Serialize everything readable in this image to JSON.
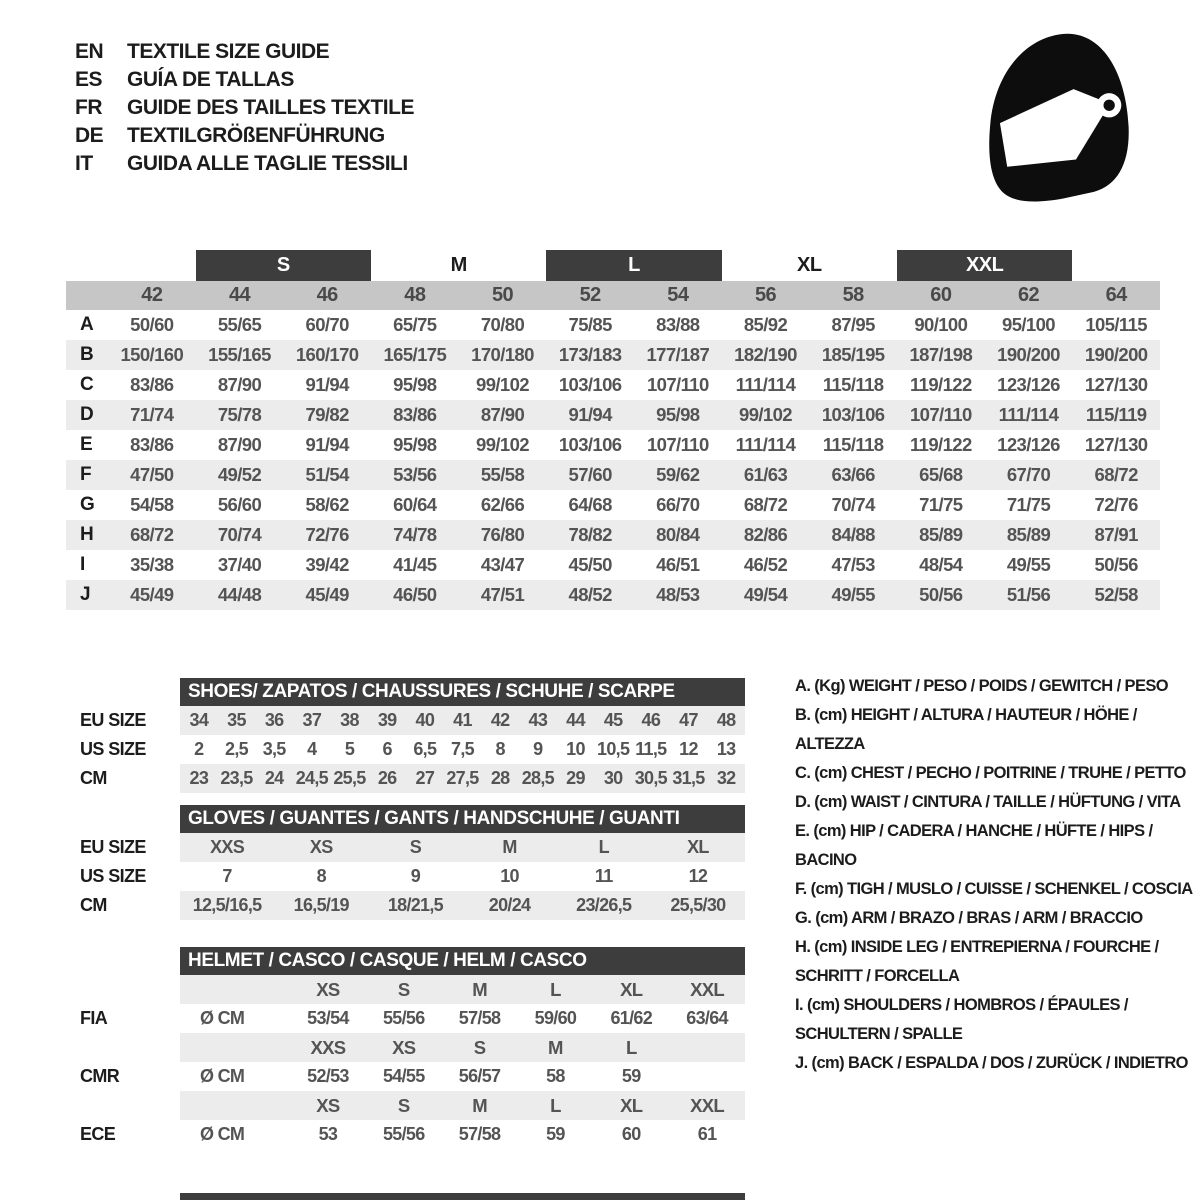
{
  "header": {
    "languages": [
      {
        "code": "EN",
        "title": "TEXTILE SIZE GUIDE"
      },
      {
        "code": "ES",
        "title": "GUÍA DE TALLAS"
      },
      {
        "code": "FR",
        "title": "GUIDE DES TAILLES TEXTILE"
      },
      {
        "code": "DE",
        "title": "TEXTILGRÖßENFÜHRUNG"
      },
      {
        "code": "IT",
        "title": "GUIDA ALLE TAGLIE TESSILI"
      }
    ],
    "icon": "racing-helmet"
  },
  "textile_table": {
    "size_bands": [
      {
        "label": "S",
        "boxed": true
      },
      {
        "label": "M",
        "boxed": false
      },
      {
        "label": "L",
        "boxed": true
      },
      {
        "label": "XL",
        "boxed": false
      },
      {
        "label": "XXL",
        "boxed": true
      }
    ],
    "numeric_sizes": [
      "42",
      "44",
      "46",
      "48",
      "50",
      "52",
      "54",
      "56",
      "58",
      "60",
      "62",
      "64"
    ],
    "rows": [
      {
        "label": "A",
        "values": [
          "50/60",
          "55/65",
          "60/70",
          "65/75",
          "70/80",
          "75/85",
          "83/88",
          "85/92",
          "87/95",
          "90/100",
          "95/100",
          "105/115"
        ]
      },
      {
        "label": "B",
        "values": [
          "150/160",
          "155/165",
          "160/170",
          "165/175",
          "170/180",
          "173/183",
          "177/187",
          "182/190",
          "185/195",
          "187/198",
          "190/200",
          "190/200"
        ]
      },
      {
        "label": "C",
        "values": [
          "83/86",
          "87/90",
          "91/94",
          "95/98",
          "99/102",
          "103/106",
          "107/110",
          "111/114",
          "115/118",
          "119/122",
          "123/126",
          "127/130"
        ]
      },
      {
        "label": "D",
        "values": [
          "71/74",
          "75/78",
          "79/82",
          "83/86",
          "87/90",
          "91/94",
          "95/98",
          "99/102",
          "103/106",
          "107/110",
          "111/114",
          "115/119"
        ]
      },
      {
        "label": "E",
        "values": [
          "83/86",
          "87/90",
          "91/94",
          "95/98",
          "99/102",
          "103/106",
          "107/110",
          "111/114",
          "115/118",
          "119/122",
          "123/126",
          "127/130"
        ]
      },
      {
        "label": "F",
        "values": [
          "47/50",
          "49/52",
          "51/54",
          "53/56",
          "55/58",
          "57/60",
          "59/62",
          "61/63",
          "63/66",
          "65/68",
          "67/70",
          "68/72"
        ]
      },
      {
        "label": "G",
        "values": [
          "54/58",
          "56/60",
          "58/62",
          "60/64",
          "62/66",
          "64/68",
          "66/70",
          "68/72",
          "70/74",
          "71/75",
          "71/75",
          "72/76"
        ]
      },
      {
        "label": "H",
        "values": [
          "68/72",
          "70/74",
          "72/76",
          "74/78",
          "76/80",
          "78/82",
          "80/84",
          "82/86",
          "84/88",
          "85/89",
          "85/89",
          "87/91"
        ]
      },
      {
        "label": "I",
        "values": [
          "35/38",
          "37/40",
          "39/42",
          "41/45",
          "43/47",
          "45/50",
          "46/51",
          "46/52",
          "47/53",
          "48/54",
          "49/55",
          "50/56"
        ]
      },
      {
        "label": "J",
        "values": [
          "45/49",
          "44/48",
          "45/49",
          "46/50",
          "47/51",
          "48/52",
          "48/53",
          "49/54",
          "49/55",
          "50/56",
          "51/56",
          "52/58"
        ]
      }
    ]
  },
  "shoes_table": {
    "title": "SHOES/ ZAPATOS / CHAUSSURES / SCHUHE / SCARPE",
    "rows": [
      {
        "label": "EU SIZE",
        "values": [
          "34",
          "35",
          "36",
          "37",
          "38",
          "39",
          "40",
          "41",
          "42",
          "43",
          "44",
          "45",
          "46",
          "47",
          "48"
        ]
      },
      {
        "label": "US SIZE",
        "values": [
          "2",
          "2,5",
          "3,5",
          "4",
          "5",
          "6",
          "6,5",
          "7,5",
          "8",
          "9",
          "10",
          "10,5",
          "11,5",
          "12",
          "13"
        ]
      },
      {
        "label": "CM",
        "values": [
          "23",
          "23,5",
          "24",
          "24,5",
          "25,5",
          "26",
          "27",
          "27,5",
          "28",
          "28,5",
          "29",
          "30",
          "30,5",
          "31,5",
          "32"
        ]
      }
    ]
  },
  "gloves_table": {
    "title": "GLOVES / GUANTES / GANTS / HANDSCHUHE / GUANTI",
    "rows": [
      {
        "label": "EU SIZE",
        "values": [
          "XXS",
          "XS",
          "S",
          "M",
          "L",
          "XL"
        ]
      },
      {
        "label": "US SIZE",
        "values": [
          "7",
          "8",
          "9",
          "10",
          "11",
          "12"
        ]
      },
      {
        "label": "CM",
        "values": [
          "12,5/16,5",
          "16,5/19",
          "18/21,5",
          "20/24",
          "23/26,5",
          "25,5/30"
        ]
      }
    ]
  },
  "helmet_table": {
    "title": "HELMET / CASCO / CASQUE / HELM / CASCO",
    "diameter_label": "Ø CM",
    "groups": [
      {
        "standard": "FIA",
        "sizes": [
          "XS",
          "S",
          "M",
          "L",
          "XL",
          "XXL"
        ],
        "values": [
          "53/54",
          "55/56",
          "57/58",
          "59/60",
          "61/62",
          "63/64"
        ]
      },
      {
        "standard": "CMR",
        "sizes": [
          "XXS",
          "XS",
          "S",
          "M",
          "L",
          ""
        ],
        "values": [
          "52/53",
          "54/55",
          "56/57",
          "58",
          "59",
          ""
        ]
      },
      {
        "standard": "ECE",
        "sizes": [
          "XS",
          "S",
          "M",
          "L",
          "XL",
          "XXL"
        ],
        "values": [
          "53",
          "55/56",
          "57/58",
          "59",
          "60",
          "61"
        ]
      }
    ]
  },
  "legend": {
    "items": [
      {
        "key": "A.",
        "unit": "(Kg)",
        "labels": "WEIGHT / PESO / POIDS / GEWITCH / PESO"
      },
      {
        "key": "B.",
        "unit": "(cm)",
        "labels": "HEIGHT / ALTURA / HAUTEUR / HÖHE / ALTEZZA"
      },
      {
        "key": "C.",
        "unit": "(cm)",
        "labels": "CHEST / PECHO / POITRINE / TRUHE / PETTO"
      },
      {
        "key": "D.",
        "unit": "(cm)",
        "labels": "WAIST / CINTURA / TAILLE / HÜFTUNG / VITA"
      },
      {
        "key": "E.",
        "unit": "(cm)",
        "labels": "HIP / CADERA / HANCHE / HÜFTE / HIPS / BACINO"
      },
      {
        "key": "F.",
        "unit": "(cm)",
        "labels": "TIGH / MUSLO / CUISSE / SCHENKEL / COSCIA"
      },
      {
        "key": "G.",
        "unit": "(cm)",
        "labels": "ARM / BRAZO / BRAS / ARM / BRACCIO"
      },
      {
        "key": "H.",
        "unit": "(cm)",
        "labels": "INSIDE LEG / ENTREPIERNA / FOURCHE / SCHRITT / FORCELLA"
      },
      {
        "key": "I.",
        "unit": "(cm)",
        "labels": "SHOULDERS / HOMBROS / ÉPAULES / SCHULTERN / SPALLE"
      },
      {
        "key": "J.",
        "unit": "(cm)",
        "labels": "BACK / ESPALDA / DOS / ZURÜCK / INDIETRO"
      }
    ]
  },
  "colors": {
    "dark": "#3d3d3d",
    "header_gray": "#c6c6c6",
    "stripe": "#ececec",
    "text_dark": "#1c1c1c",
    "text_value": "#545454",
    "icon_black": "#0d0d0d"
  }
}
